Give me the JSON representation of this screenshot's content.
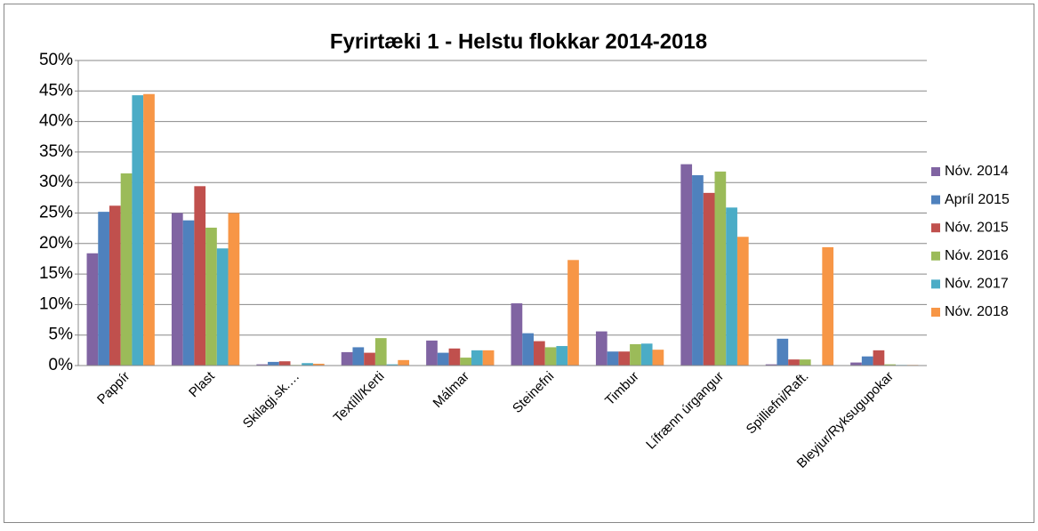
{
  "chart_data": {
    "type": "bar",
    "title": "Fyrirtæki 1 - Helstu flokkar 2014-2018",
    "categories": [
      "Pappír",
      "Plast",
      "Skilagj.sk.…",
      "Textíll/Kerti",
      "Málmar",
      "Steinefni",
      "Timbur",
      "Lífrænn úrgangur",
      "Spilliefni/Raft.",
      "Bleyjur/Ryksugupokar"
    ],
    "series": [
      {
        "name": "Nóv. 2014",
        "color": "#8064a2",
        "values": [
          18.4,
          25,
          0.2,
          2.2,
          4.1,
          10.2,
          5.6,
          33,
          0.2,
          0.5
        ]
      },
      {
        "name": "Apríl 2015",
        "color": "#4f81bd",
        "values": [
          25.2,
          23.8,
          0.6,
          3,
          2.1,
          5.3,
          2.3,
          31.2,
          4.4,
          1.5
        ]
      },
      {
        "name": "Nóv. 2015",
        "color": "#c0504d",
        "values": [
          26.2,
          29.4,
          0.7,
          2.1,
          2.8,
          4,
          2.3,
          28.3,
          1,
          2.5
        ]
      },
      {
        "name": "Nóv. 2016",
        "color": "#9bbb59",
        "values": [
          31.5,
          22.6,
          0.1,
          4.5,
          1.3,
          3,
          3.5,
          31.8,
          1,
          0.2
        ]
      },
      {
        "name": "Nóv. 2017",
        "color": "#4bacc6",
        "values": [
          44.3,
          19.2,
          0.4,
          0.2,
          2.5,
          3.2,
          3.6,
          25.9,
          0,
          0.1
        ]
      },
      {
        "name": "Nóv. 2018",
        "color": "#f79646",
        "values": [
          44.5,
          25,
          0.3,
          0.9,
          2.5,
          17.3,
          2.6,
          21.1,
          19.4,
          0.1
        ]
      }
    ],
    "ylim": [
      0,
      50
    ],
    "yticks": [
      {
        "value": 0,
        "label": "0%"
      },
      {
        "value": 5,
        "label": "5%"
      },
      {
        "value": 10,
        "label": "10%"
      },
      {
        "value": 15,
        "label": "15%"
      },
      {
        "value": 20,
        "label": "20%"
      },
      {
        "value": 25,
        "label": "25%"
      },
      {
        "value": 30,
        "label": "30%"
      },
      {
        "value": 35,
        "label": "35%"
      },
      {
        "value": 40,
        "label": "40%"
      },
      {
        "value": 45,
        "label": "45%"
      },
      {
        "value": 50,
        "label": "50%"
      }
    ],
    "grid": true,
    "legend": "right"
  }
}
